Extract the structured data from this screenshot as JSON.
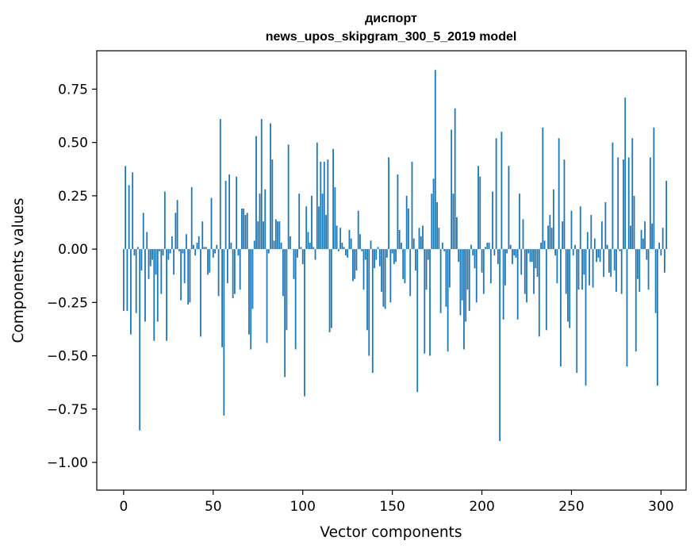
{
  "chart_data": {
    "type": "bar",
    "title_line1": "диспорт",
    "title_line2": "news_upos_skipgram_300_5_2019 model",
    "xlabel": "Vector components",
    "ylabel": "Components values",
    "xlim": [
      -15,
      314
    ],
    "ylim": [
      -1.13,
      0.93
    ],
    "xticks": [
      0,
      50,
      100,
      150,
      200,
      250,
      300
    ],
    "xtick_labels": [
      "0",
      "50",
      "100",
      "150",
      "200",
      "250",
      "300"
    ],
    "yticks": [
      -1.0,
      -0.75,
      -0.5,
      -0.25,
      0.0,
      0.25,
      0.5,
      0.75
    ],
    "ytick_labels": [
      "−1.00",
      "−0.75",
      "−0.50",
      "−0.25",
      "0.00",
      "0.25",
      "0.50",
      "0.75"
    ],
    "bar_color": "#1f77b4",
    "values": [
      -0.29,
      0.39,
      -0.29,
      0.3,
      -0.4,
      0.36,
      -0.03,
      -0.3,
      0.01,
      -0.85,
      -0.1,
      0.17,
      -0.34,
      0.08,
      -0.14,
      -0.08,
      -0.05,
      -0.43,
      -0.12,
      -0.34,
      -0.01,
      -0.21,
      -0.03,
      0.27,
      -0.43,
      -0.05,
      -0.02,
      0.06,
      -0.12,
      0.17,
      0.23,
      -0.01,
      -0.24,
      -0.02,
      -0.16,
      0.07,
      -0.26,
      -0.25,
      0.29,
      0.02,
      -0.03,
      0.03,
      0.06,
      -0.41,
      0.13,
      0.01,
      0.01,
      -0.12,
      -0.11,
      0.24,
      -0.04,
      -0.02,
      0.02,
      -0.22,
      0.61,
      -0.46,
      -0.78,
      0.32,
      -0.16,
      0.35,
      0.03,
      -0.23,
      -0.21,
      0.34,
      -0.03,
      -0.19,
      0.19,
      0.19,
      0.16,
      0.17,
      -0.4,
      -0.47,
      -0.28,
      0.04,
      0.53,
      0.13,
      0.26,
      0.61,
      0.13,
      0.28,
      -0.44,
      -0.02,
      0.59,
      0.42,
      0.04,
      0.14,
      0.13,
      0.13,
      0.03,
      -0.22,
      -0.6,
      -0.38,
      0.49,
      0.06,
      0.0,
      -0.14,
      -0.47,
      -0.04,
      0.26,
      0.01,
      -0.07,
      -0.69,
      0.2,
      0.08,
      0.03,
      0.25,
      0.01,
      -0.05,
      0.5,
      0.2,
      0.41,
      0.26,
      0.41,
      0.16,
      0.42,
      -0.39,
      -0.37,
      0.47,
      0.29,
      0.11,
      -0.01,
      0.1,
      0.03,
      0.01,
      -0.03,
      -0.04,
      0.09,
      0.05,
      -0.15,
      -0.14,
      -0.1,
      0.18,
      0.07,
      -0.01,
      -0.19,
      -0.05,
      -0.38,
      -0.5,
      0.04,
      -0.58,
      -0.09,
      -0.05,
      0.01,
      -0.08,
      -0.2,
      -0.27,
      -0.28,
      -0.04,
      0.43,
      -0.25,
      -0.02,
      -0.07,
      -0.06,
      0.35,
      0.09,
      0.03,
      -0.14,
      -0.16,
      0.25,
      0.19,
      -0.22,
      0.41,
      0.05,
      -0.1,
      -0.67,
      0.1,
      0.06,
      0.11,
      -0.49,
      -0.19,
      -0.05,
      -0.5,
      0.26,
      0.33,
      0.84,
      0.22,
      0.1,
      -0.3,
      0.03,
      -0.01,
      -0.27,
      -0.48,
      -0.18,
      0.56,
      0.26,
      0.66,
      0.15,
      -0.06,
      -0.31,
      -0.24,
      -0.47,
      -0.34,
      -0.19,
      -0.29,
      0.02,
      -0.03,
      -0.09,
      -0.25,
      0.39,
      0.34,
      -0.11,
      -0.21,
      0.01,
      0.03,
      0.03,
      -0.16,
      0.27,
      -0.03,
      0.52,
      -0.07,
      -0.9,
      0.55,
      -0.33,
      -0.17,
      -0.02,
      0.39,
      0.02,
      -0.07,
      -0.03,
      -0.04,
      -0.33,
      0.26,
      -0.12,
      0.14,
      -0.21,
      -0.25,
      -0.02,
      -0.06,
      -0.06,
      -0.21,
      -0.09,
      -0.13,
      -0.41,
      0.03,
      0.57,
      0.04,
      -0.38,
      0.11,
      0.16,
      0.1,
      0.28,
      -0.03,
      -0.16,
      0.52,
      -0.55,
      0.13,
      0.42,
      -0.21,
      -0.34,
      -0.37,
      0.18,
      -0.03,
      0.02,
      -0.58,
      -0.19,
      0.2,
      -0.19,
      -0.12,
      -0.64,
      0.08,
      -0.17,
      0.16,
      -0.18,
      0.05,
      -0.06,
      -0.04,
      -0.06,
      0.13,
      -0.13,
      0.22,
      0.02,
      -0.11,
      -0.13,
      0.5,
      -0.1,
      -0.2,
      0.43,
      -0.01,
      -0.21,
      0.42,
      0.71,
      -0.55,
      0.43,
      0.11,
      0.52,
      0.25,
      -0.48,
      -0.14,
      -0.2,
      0.09,
      0.05,
      0.13,
      -0.05,
      -0.19,
      0.43,
      0.12,
      0.57,
      -0.3,
      -0.64,
      0.03,
      -0.03,
      0.1,
      -0.11,
      0.32
    ]
  }
}
